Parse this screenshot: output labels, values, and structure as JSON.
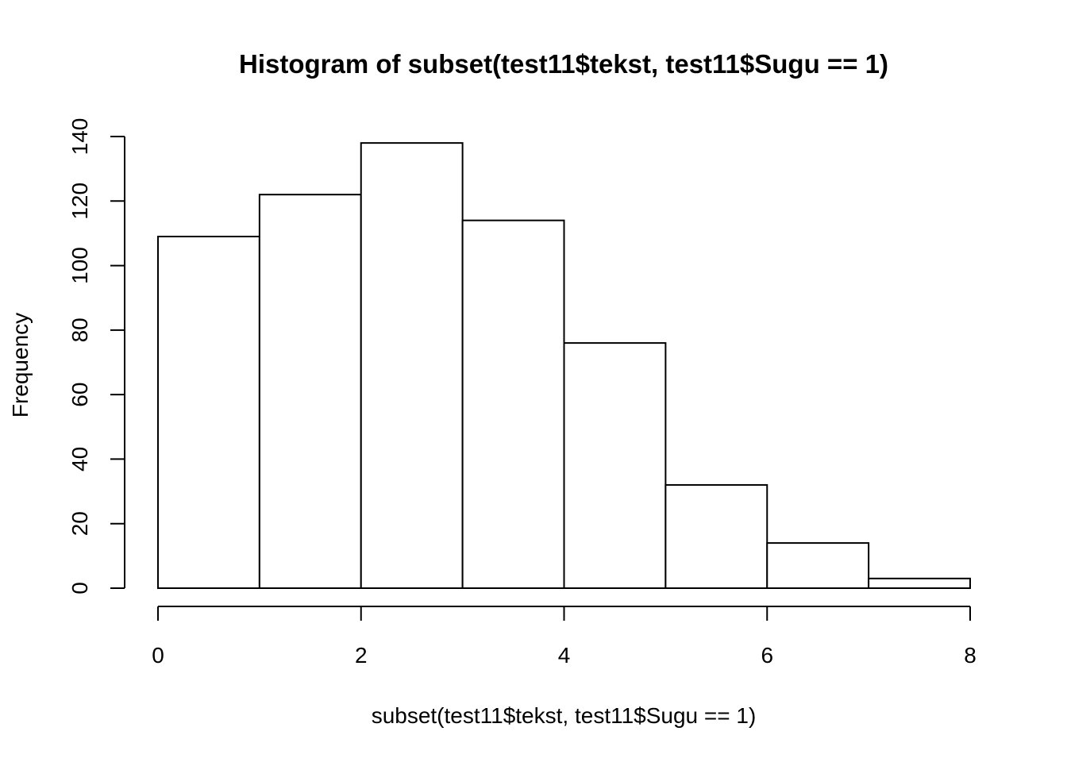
{
  "chart_data": {
    "type": "bar",
    "title": "Histogram of subset(test11$tekst, test11$Sugu == 1)",
    "xlabel": "subset(test11$tekst, test11$Sugu == 1)",
    "ylabel": "Frequency",
    "bins": [
      {
        "start": 0,
        "end": 1,
        "count": 109
      },
      {
        "start": 1,
        "end": 2,
        "count": 122
      },
      {
        "start": 2,
        "end": 3,
        "count": 138
      },
      {
        "start": 3,
        "end": 4,
        "count": 114
      },
      {
        "start": 4,
        "end": 5,
        "count": 76
      },
      {
        "start": 5,
        "end": 6,
        "count": 32
      },
      {
        "start": 6,
        "end": 7,
        "count": 14
      },
      {
        "start": 7,
        "end": 8,
        "count": 3
      }
    ],
    "xlim": [
      0,
      8
    ],
    "ylim": [
      0,
      140
    ],
    "x_ticks": [
      "0",
      "2",
      "4",
      "6",
      "8"
    ],
    "y_ticks": [
      "0",
      "20",
      "40",
      "60",
      "80",
      "100",
      "120",
      "140"
    ],
    "grid": false,
    "colors": {
      "bar_fill": "#ffffff",
      "bar_stroke": "#000000"
    }
  }
}
